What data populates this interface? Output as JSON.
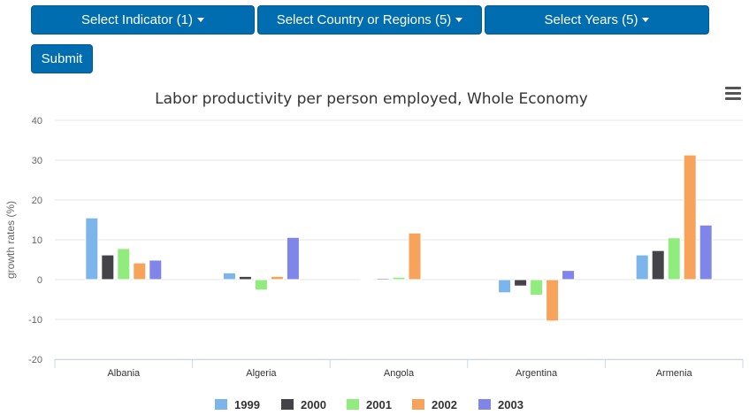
{
  "controls": {
    "indicator_label": "Select Indicator (1)",
    "country_label": "Select Country or Regions (5)",
    "years_label": "Select Years (5)",
    "submit_label": "Submit"
  },
  "chart_data": {
    "type": "bar",
    "title": "Labor productivity per person employed, Whole Economy",
    "xlabel": "",
    "ylabel": "growth rates (%)",
    "ylim": [
      -20,
      40
    ],
    "yticks": [
      40,
      30,
      20,
      10,
      0,
      -10,
      -20
    ],
    "grid": true,
    "legend": "bottom",
    "categories": [
      "Albania",
      "Algeria",
      "Angola",
      "Argentina",
      "Armenia"
    ],
    "series": [
      {
        "name": "1999",
        "color": "#7cb5ec",
        "values": [
          15.5,
          1.7,
          0.1,
          -3.3,
          6.2
        ]
      },
      {
        "name": "2000",
        "color": "#434348",
        "values": [
          6.2,
          0.8,
          0.3,
          -1.6,
          7.3
        ]
      },
      {
        "name": "2001",
        "color": "#90ed7d",
        "values": [
          7.8,
          -2.6,
          0.6,
          -3.9,
          10.5
        ]
      },
      {
        "name": "2002",
        "color": "#f7a35c",
        "values": [
          4.2,
          0.8,
          11.7,
          -10.4,
          31.3
        ]
      },
      {
        "name": "2003",
        "color": "#8085e9",
        "values": [
          4.9,
          10.6,
          null,
          2.3,
          13.7
        ]
      }
    ]
  }
}
